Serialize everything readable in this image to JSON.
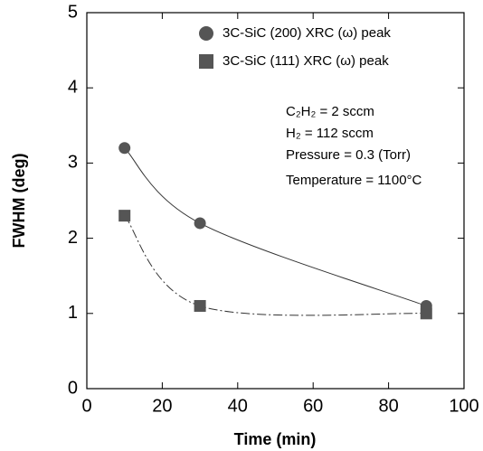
{
  "chart_data": {
    "type": "scatter",
    "x_label": "Time (min)",
    "y_label": "FWHM (deg)",
    "xlim": [
      0,
      100
    ],
    "xticks": [
      0,
      20,
      40,
      60,
      80,
      100
    ],
    "ylim": [
      0,
      5
    ],
    "yticks": [
      0,
      1,
      2,
      3,
      4,
      5
    ],
    "series": [
      {
        "name": "3C-SiC (200) XRC (ω) peak",
        "color": "#555555",
        "marker": "circle",
        "line": "solid",
        "x": [
          10,
          30,
          90
        ],
        "values": [
          3.2,
          2.2,
          1.1
        ]
      },
      {
        "name": "3C-SiC (111) XRC (ω) peak",
        "color": "#555555",
        "marker": "square",
        "line": "dashdot",
        "x": [
          10,
          30,
          90
        ],
        "values": [
          2.3,
          1.1,
          1.0
        ]
      }
    ],
    "annotations": [
      "C₂H₂ = 2 sccm",
      "H₂ = 112 sccm",
      "Pressure = 0.3 (Torr)",
      "Temperature = 1100°C"
    ]
  }
}
